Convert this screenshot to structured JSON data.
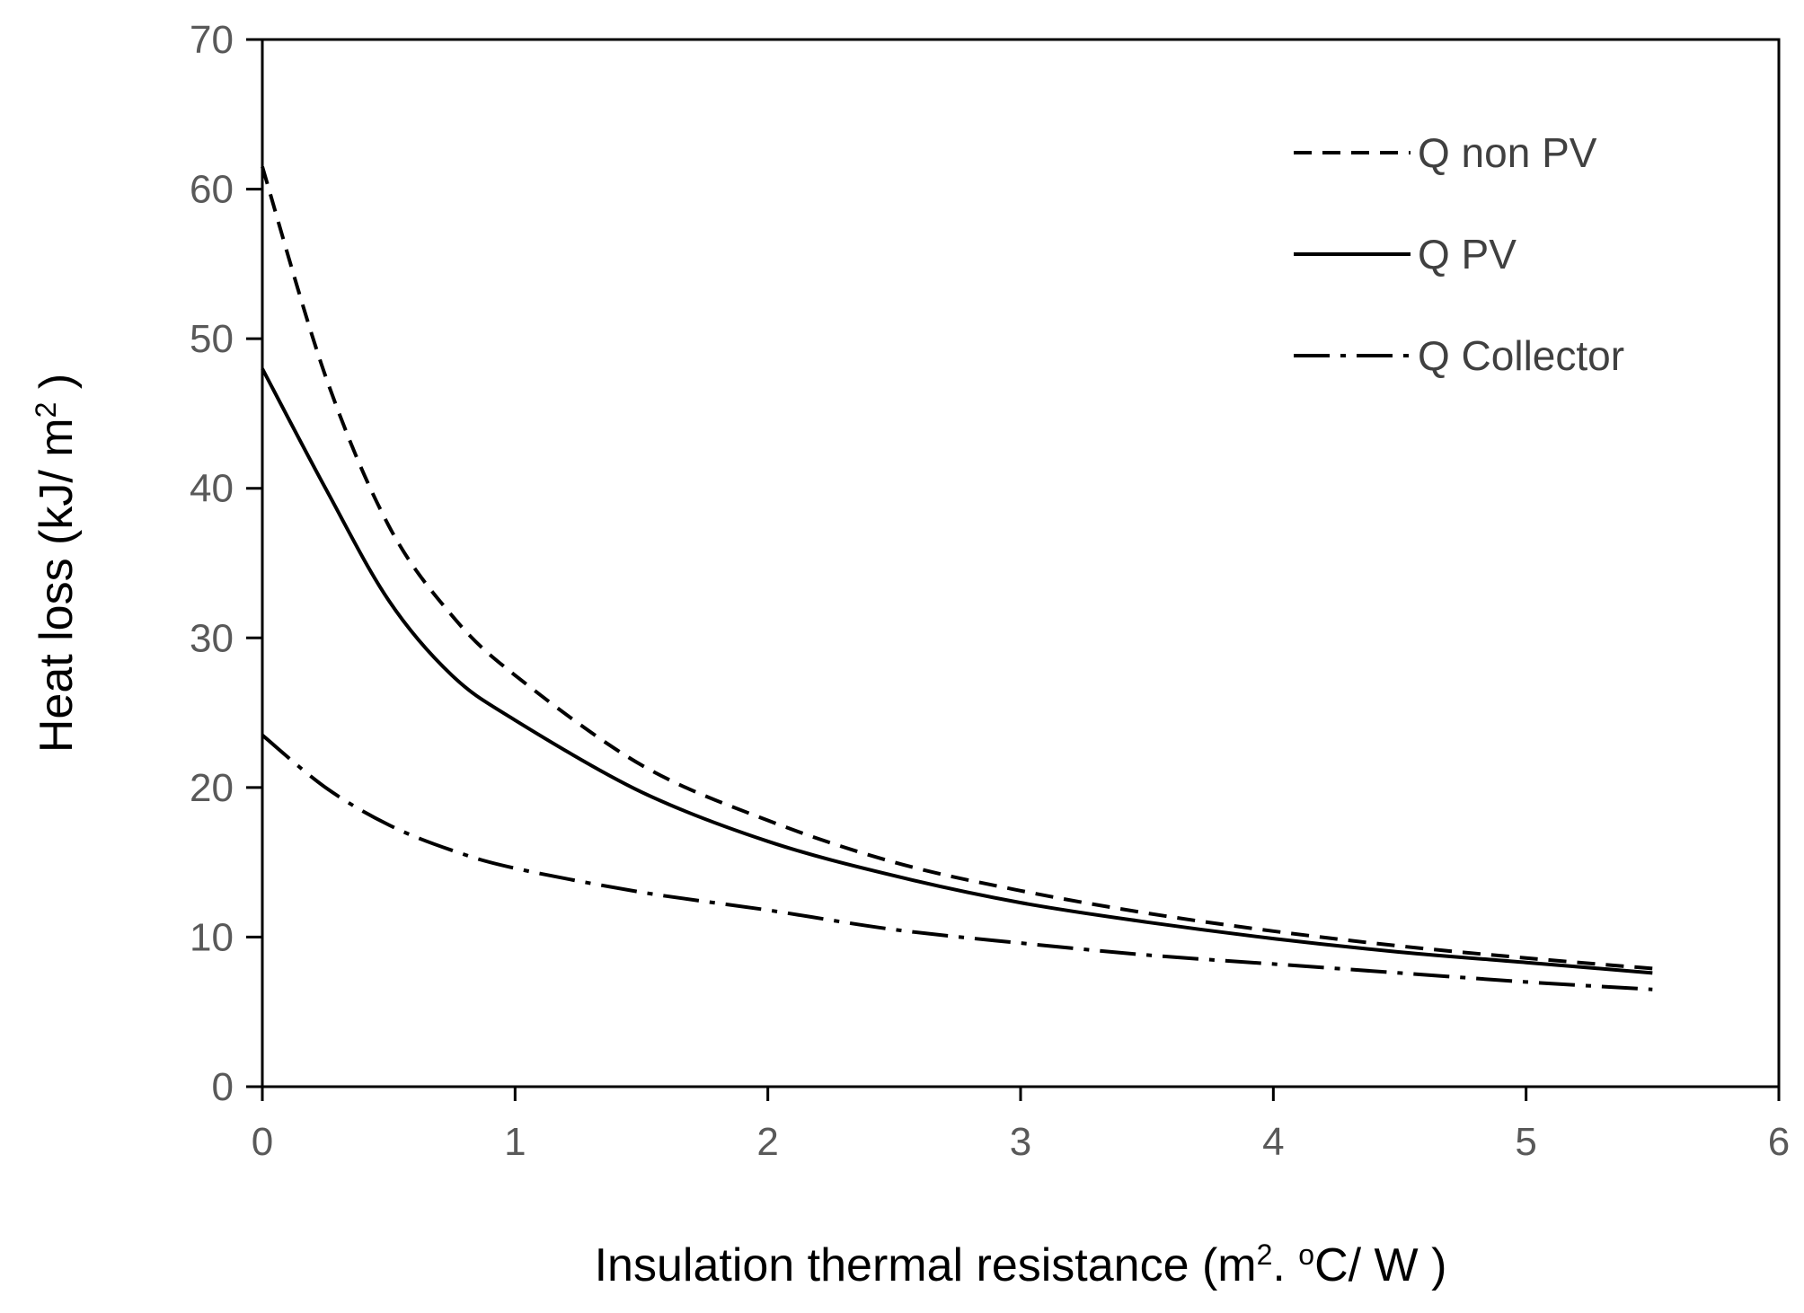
{
  "chart_data": {
    "type": "line",
    "title": "",
    "xlabel": "Insulation thermal resistance",
    "xlabel_units": {
      "open": "(m",
      "sup1": "2",
      "mid": ". ",
      "sup2": "o",
      "close": "C/ W )"
    },
    "ylabel": "Heat loss",
    "ylabel_units": {
      "open": "(kJ/ m",
      "sup": "2",
      "close": " )"
    },
    "xlim": [
      0,
      6
    ],
    "ylim": [
      0,
      70
    ],
    "xticks": [
      0,
      1,
      2,
      3,
      4,
      5,
      6
    ],
    "yticks": [
      0,
      10,
      20,
      30,
      40,
      50,
      60,
      70
    ],
    "grid": false,
    "legend_position": "top-right",
    "x": [
      0,
      0.25,
      0.5,
      0.75,
      1,
      1.5,
      2,
      2.5,
      3,
      3.5,
      4,
      4.5,
      5,
      5.5
    ],
    "series": [
      {
        "name": "Q non PV",
        "style": "dashed",
        "values": [
          61.5,
          47.5,
          37.5,
          31.5,
          27.5,
          21.5,
          17.8,
          15.0,
          13.1,
          11.6,
          10.4,
          9.4,
          8.6,
          7.9
        ]
      },
      {
        "name": "Q PV",
        "style": "solid",
        "values": [
          48.0,
          40.0,
          32.5,
          27.5,
          24.5,
          19.7,
          16.4,
          14.1,
          12.3,
          11.0,
          9.9,
          9.0,
          8.3,
          7.6
        ]
      },
      {
        "name": "Q Collector",
        "style": "dashdot",
        "values": [
          23.5,
          20.0,
          17.5,
          15.8,
          14.6,
          13.0,
          11.8,
          10.5,
          9.6,
          8.8,
          8.2,
          7.6,
          7.0,
          6.5
        ]
      }
    ]
  }
}
